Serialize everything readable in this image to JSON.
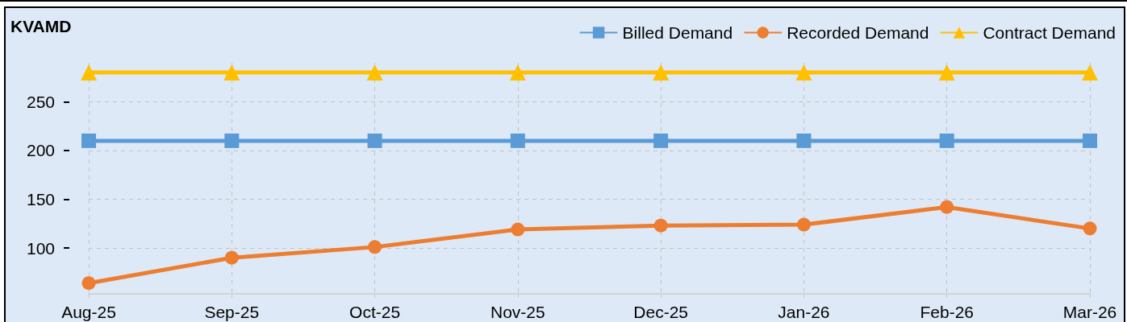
{
  "chart_data": {
    "type": "line",
    "ylabel": "KVAMD",
    "categories": [
      "Aug-25",
      "Sep-25",
      "Oct-25",
      "Nov-25",
      "Dec-25",
      "Jan-26",
      "Feb-26",
      "Mar-26"
    ],
    "series": [
      {
        "name": "Billed Demand",
        "color": "#5b9bd5",
        "marker": "square",
        "values": [
          210,
          210,
          210,
          210,
          210,
          210,
          210,
          210
        ]
      },
      {
        "name": "Recorded Demand",
        "color": "#ed7d31",
        "marker": "circle",
        "values": [
          64,
          90,
          101,
          119,
          123,
          124,
          142,
          120
        ]
      },
      {
        "name": "Contract Demand",
        "color": "#ffc000",
        "marker": "triangle",
        "values": [
          280,
          280,
          280,
          280,
          280,
          280,
          280,
          280
        ]
      }
    ],
    "ylim": [
      53,
      290
    ],
    "yticks": [
      100,
      150,
      200,
      250
    ],
    "grid": true,
    "legend": "top right",
    "line_style": "solid"
  }
}
